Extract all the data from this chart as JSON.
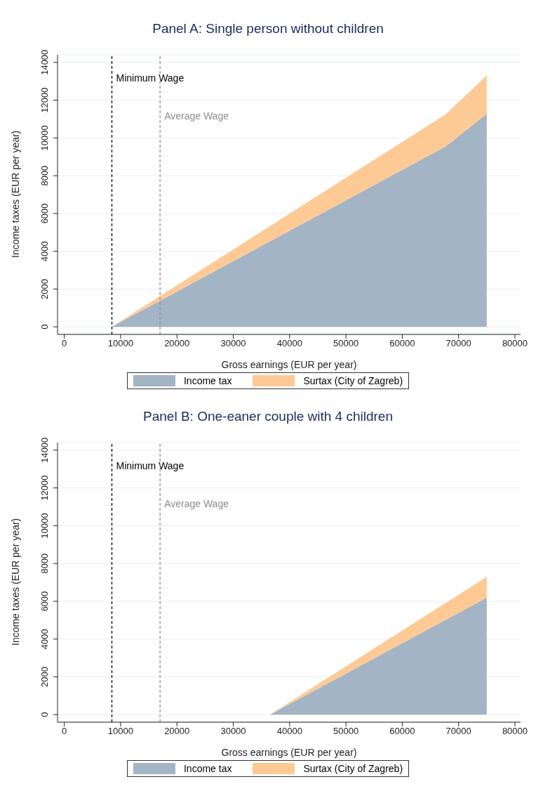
{
  "chart_data": [
    {
      "type": "area",
      "stacked": true,
      "title": "Panel A: Single person without children",
      "xlabel": "Gross earnings (EUR per year)",
      "ylabel": "Income taxes (EUR per year)",
      "x": [
        8400,
        67700,
        75000
      ],
      "series": [
        {
          "name": "Income tax",
          "color": "#a3b4c4",
          "values": [
            0,
            9550,
            11280
          ]
        },
        {
          "name": "Surtax (City of Zagreb)",
          "color": "#fdca96",
          "values": [
            0,
            1700,
            2030
          ]
        }
      ],
      "xlim": [
        -1200,
        81000
      ],
      "xticks": [
        0,
        10000,
        20000,
        30000,
        40000,
        50000,
        60000,
        70000,
        80000
      ],
      "ylim": [
        -400,
        14400
      ],
      "yticks": [
        0,
        2000,
        4000,
        6000,
        8000,
        10000,
        12000,
        14000
      ],
      "grid": "y",
      "legend": "bottom",
      "ref_lines": [
        {
          "axis": "x",
          "value": 8450,
          "label": "Minimum Wage",
          "color": "#000000",
          "line_style": "dashed"
        },
        {
          "axis": "x",
          "value": 17000,
          "label": "Average Wage",
          "color": "#8c8c8c",
          "line_style": "dashed"
        }
      ]
    },
    {
      "type": "area",
      "stacked": true,
      "title": "Panel B: One-eaner couple with 4 children",
      "xlabel": "Gross earnings (EUR per year)",
      "ylabel": "Income taxes (EUR per year)",
      "x": [
        36500,
        75000
      ],
      "series": [
        {
          "name": "Income tax",
          "color": "#a3b4c4",
          "values": [
            0,
            6190
          ]
        },
        {
          "name": "Surtax (City of Zagreb)",
          "color": "#fdca96",
          "values": [
            0,
            1110
          ]
        }
      ],
      "xlim": [
        -1200,
        81000
      ],
      "xticks": [
        0,
        10000,
        20000,
        30000,
        40000,
        50000,
        60000,
        70000,
        80000
      ],
      "ylim": [
        -400,
        14400
      ],
      "yticks": [
        0,
        2000,
        4000,
        6000,
        8000,
        10000,
        12000,
        14000
      ],
      "grid": "y",
      "legend": "bottom",
      "ref_lines": [
        {
          "axis": "x",
          "value": 8450,
          "label": "Minimum Wage",
          "color": "#000000",
          "line_style": "dashed"
        },
        {
          "axis": "x",
          "value": 17000,
          "label": "Average Wage",
          "color": "#8c8c8c",
          "line_style": "dashed"
        }
      ]
    }
  ]
}
